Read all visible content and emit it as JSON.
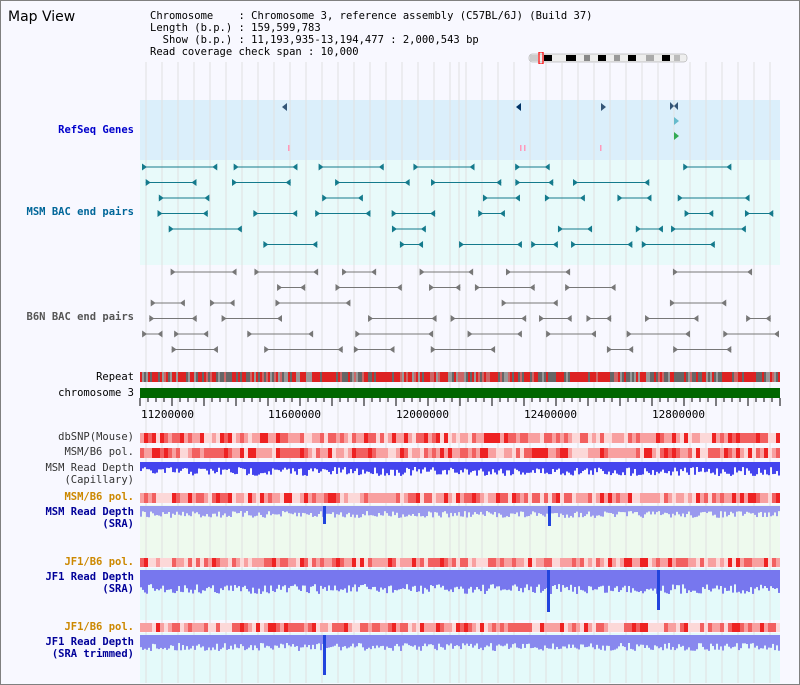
{
  "page_title": "Map View",
  "info": {
    "line1": "Chromosome    : Chromosome 3, reference assembly (C57BL/6J) (Build 37)",
    "line2": "Length (b.p.) : 159,599,783",
    "line3": "  Show (b.p.) : 11,193,935-13,194,477 : 2,000,543 bp",
    "line4": "Read coverage check span : 10,000"
  },
  "tracks": {
    "refseq": "RefSeq Genes",
    "msm_bac": "MSM BAC end pairs",
    "b6n_bac": "B6N BAC end pairs",
    "repeat": "Repeat",
    "chromosome": "chromosome 3",
    "dbsnp": "dbSNP(Mouse)",
    "msm_b6_pol1": "MSM/B6 pol.",
    "msm_rd_cap_1": "MSM Read Depth",
    "msm_rd_cap_2": "(Capillary)",
    "msm_b6_pol2": "MSM/B6 pol.",
    "msm_rd_sra_1": "MSM Read Depth",
    "msm_rd_sra_2": "(SRA)",
    "jf1_b6_pol": "JF1/B6 pol.",
    "jf1_rd_sra_1": "JF1 Read Depth",
    "jf1_rd_sra_2": "(SRA)",
    "jf1_b6_pol2": "JF1/B6 pol.",
    "jf1_rd_trim_1": "JF1 Read Depth",
    "jf1_rd_trim_2": "(SRA trimmed)"
  },
  "axis": {
    "ticks": [
      "11200000",
      "11600000",
      "12000000",
      "12400000",
      "12800000"
    ]
  },
  "colors": {
    "refseq_label": "#0000cc",
    "msm_label": "#006699",
    "b6n_label": "#555555",
    "orange_label": "#cc8800",
    "blue_label": "#000099",
    "chromosome_bar": "#006600"
  }
}
